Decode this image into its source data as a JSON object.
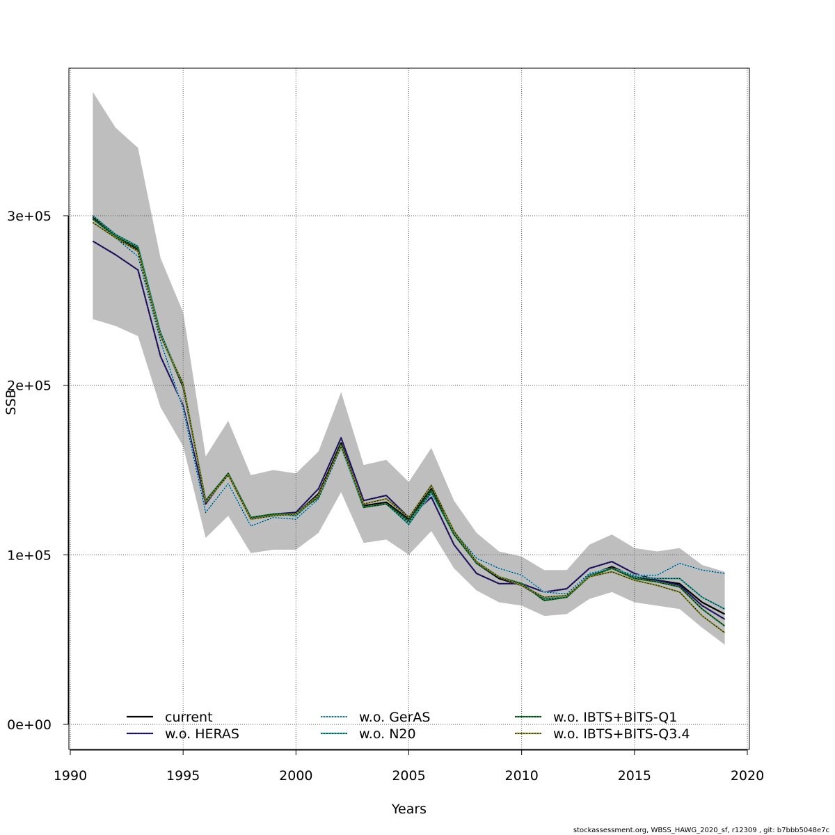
{
  "chart_data": {
    "type": "line",
    "xlabel": "Years",
    "ylabel": "SSB",
    "xlim": [
      1990,
      2020
    ],
    "ylim": [
      0,
      380000
    ],
    "x_ticks": [
      {
        "value": 1990,
        "label": "1990"
      },
      {
        "value": 1995,
        "label": "1995"
      },
      {
        "value": 2000,
        "label": "2000"
      },
      {
        "value": 2005,
        "label": "2005"
      },
      {
        "value": 2010,
        "label": "2010"
      },
      {
        "value": 2015,
        "label": "2015"
      },
      {
        "value": 2020,
        "label": "2020"
      }
    ],
    "y_ticks": [
      {
        "value": 0,
        "label": "0e+00"
      },
      {
        "value": 100000,
        "label": "1e+05"
      },
      {
        "value": 200000,
        "label": "2e+05"
      },
      {
        "value": 300000,
        "label": "3e+05"
      }
    ],
    "grid": true,
    "legend_position": "bottom",
    "x": [
      1991,
      1992,
      1993,
      1994,
      1995,
      1996,
      1997,
      1998,
      1999,
      2000,
      2001,
      2002,
      2003,
      2004,
      2005,
      2006,
      2007,
      2008,
      2009,
      2010,
      2011,
      2012,
      2013,
      2014,
      2015,
      2016,
      2017,
      2018,
      2019
    ],
    "band": {
      "color": "#bebebe",
      "upper": [
        373000,
        352000,
        340000,
        275000,
        243000,
        158000,
        179000,
        147000,
        150000,
        148000,
        161000,
        196000,
        153000,
        156000,
        143000,
        163000,
        132000,
        113000,
        102000,
        99000,
        91000,
        91000,
        106000,
        112000,
        104000,
        102000,
        104000,
        94000,
        90000
      ],
      "lower": [
        239000,
        235000,
        229000,
        187000,
        164000,
        110000,
        123000,
        101000,
        103000,
        103000,
        113000,
        137000,
        107000,
        109000,
        100000,
        114000,
        92000,
        79000,
        72000,
        70000,
        64000,
        65000,
        74000,
        78000,
        72000,
        70000,
        68000,
        57000,
        47000
      ]
    },
    "series": [
      {
        "name": "current",
        "color": "#000000",
        "dashed": false,
        "values": [
          299000,
          288000,
          280000,
          230000,
          199000,
          132000,
          148000,
          122000,
          124000,
          124000,
          136000,
          166000,
          129000,
          131000,
          121000,
          139000,
          114000,
          95000,
          86000,
          82000,
          74000,
          75000,
          88000,
          93000,
          87000,
          85000,
          83000,
          72000,
          65000
        ]
      },
      {
        "name": "w.o. HERAS",
        "color": "#2d1e7c",
        "dashed": true,
        "values": [
          285000,
          277000,
          268000,
          217000,
          188000,
          130000,
          148000,
          121000,
          124000,
          125000,
          139000,
          169000,
          132000,
          135000,
          122000,
          134000,
          106000,
          89000,
          83000,
          83000,
          78000,
          80000,
          92000,
          96000,
          89000,
          85000,
          82000,
          70000,
          62000
        ]
      },
      {
        "name": "w.o. GerAS",
        "color": "#87ceeb",
        "dashed": true,
        "values": [
          298000,
          287000,
          276000,
          226000,
          186000,
          125000,
          142000,
          117000,
          122000,
          121000,
          133000,
          163000,
          128000,
          130000,
          119000,
          136000,
          114000,
          98000,
          92000,
          88000,
          78000,
          77000,
          89000,
          92000,
          88000,
          88000,
          95000,
          91000,
          89000
        ]
      },
      {
        "name": "w.o. N20",
        "color": "#30a8a0",
        "dashed": true,
        "values": [
          300000,
          289000,
          282000,
          231000,
          200000,
          132000,
          148000,
          122000,
          124000,
          123000,
          135000,
          164000,
          128000,
          130000,
          118000,
          137000,
          112000,
          96000,
          87000,
          83000,
          74000,
          75000,
          88000,
          92000,
          87000,
          86000,
          86000,
          75000,
          68000
        ]
      },
      {
        "name": "w.o. IBTS+BITS-Q1",
        "color": "#1e7e34",
        "dashed": true,
        "values": [
          298000,
          288000,
          281000,
          229000,
          200000,
          132000,
          148000,
          122000,
          124000,
          124000,
          134000,
          165000,
          128000,
          130000,
          120000,
          138000,
          112000,
          95000,
          87000,
          83000,
          73000,
          75000,
          87000,
          92000,
          86000,
          84000,
          81000,
          68000,
          58000
        ]
      },
      {
        "name": "w.o. IBTS+BITS-Q3.4",
        "color": "#8f9433",
        "dashed": true,
        "values": [
          296000,
          287000,
          279000,
          229000,
          201000,
          131000,
          147000,
          121000,
          123000,
          124000,
          135000,
          164000,
          130000,
          133000,
          122000,
          141000,
          114000,
          96000,
          87000,
          82000,
          75000,
          76000,
          87000,
          90000,
          85000,
          82000,
          78000,
          64000,
          54000
        ]
      }
    ]
  },
  "footer": "stockassessment.org, WBSS_HAWG_2020_sf, r12309 , git: b7bbb5048e7c"
}
